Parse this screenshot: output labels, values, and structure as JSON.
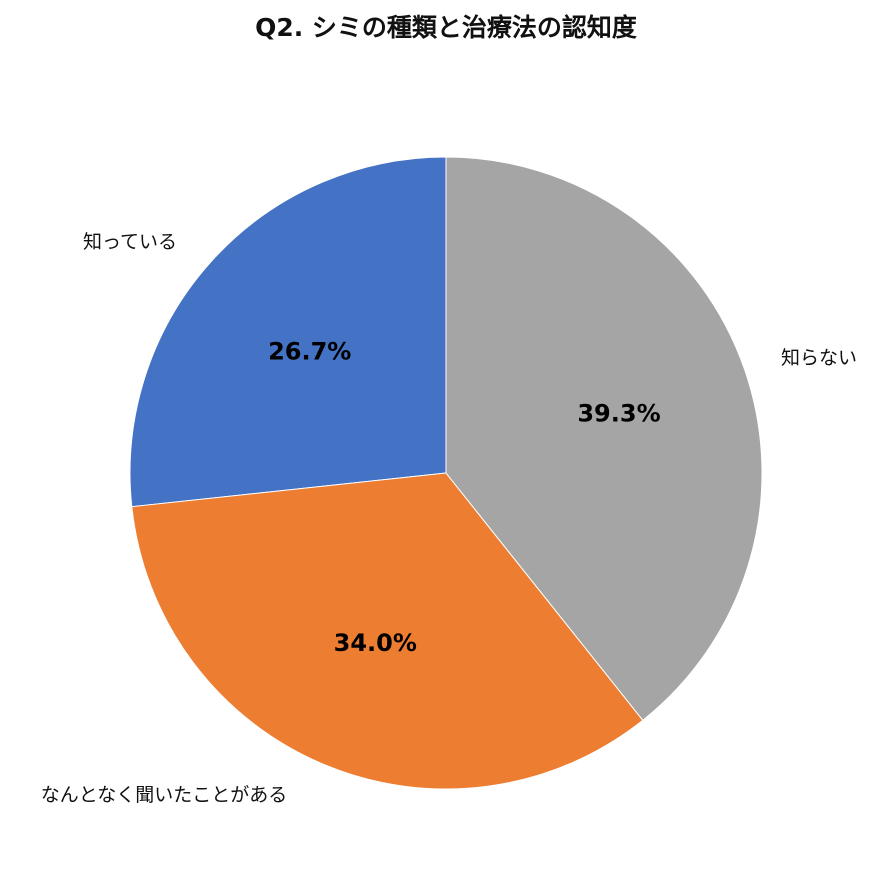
{
  "chart_data": {
    "type": "pie",
    "title": "Q2. シミの種類と治療法の認知度",
    "unit": "%",
    "slices": [
      {
        "label": "知っている",
        "value": 26.7,
        "value_label": "26.7%",
        "color": "#4472C4"
      },
      {
        "label": "なんとなく聞いたことがある",
        "value": 34.0,
        "value_label": "34.0%",
        "color": "#ED7D31"
      },
      {
        "label": "知らない",
        "value": 39.3,
        "value_label": "39.3%",
        "color": "#A5A5A5"
      }
    ],
    "start_angle": "12 o'clock",
    "direction": "counterclockwise",
    "legend": "none",
    "category_label_position": "outside"
  }
}
